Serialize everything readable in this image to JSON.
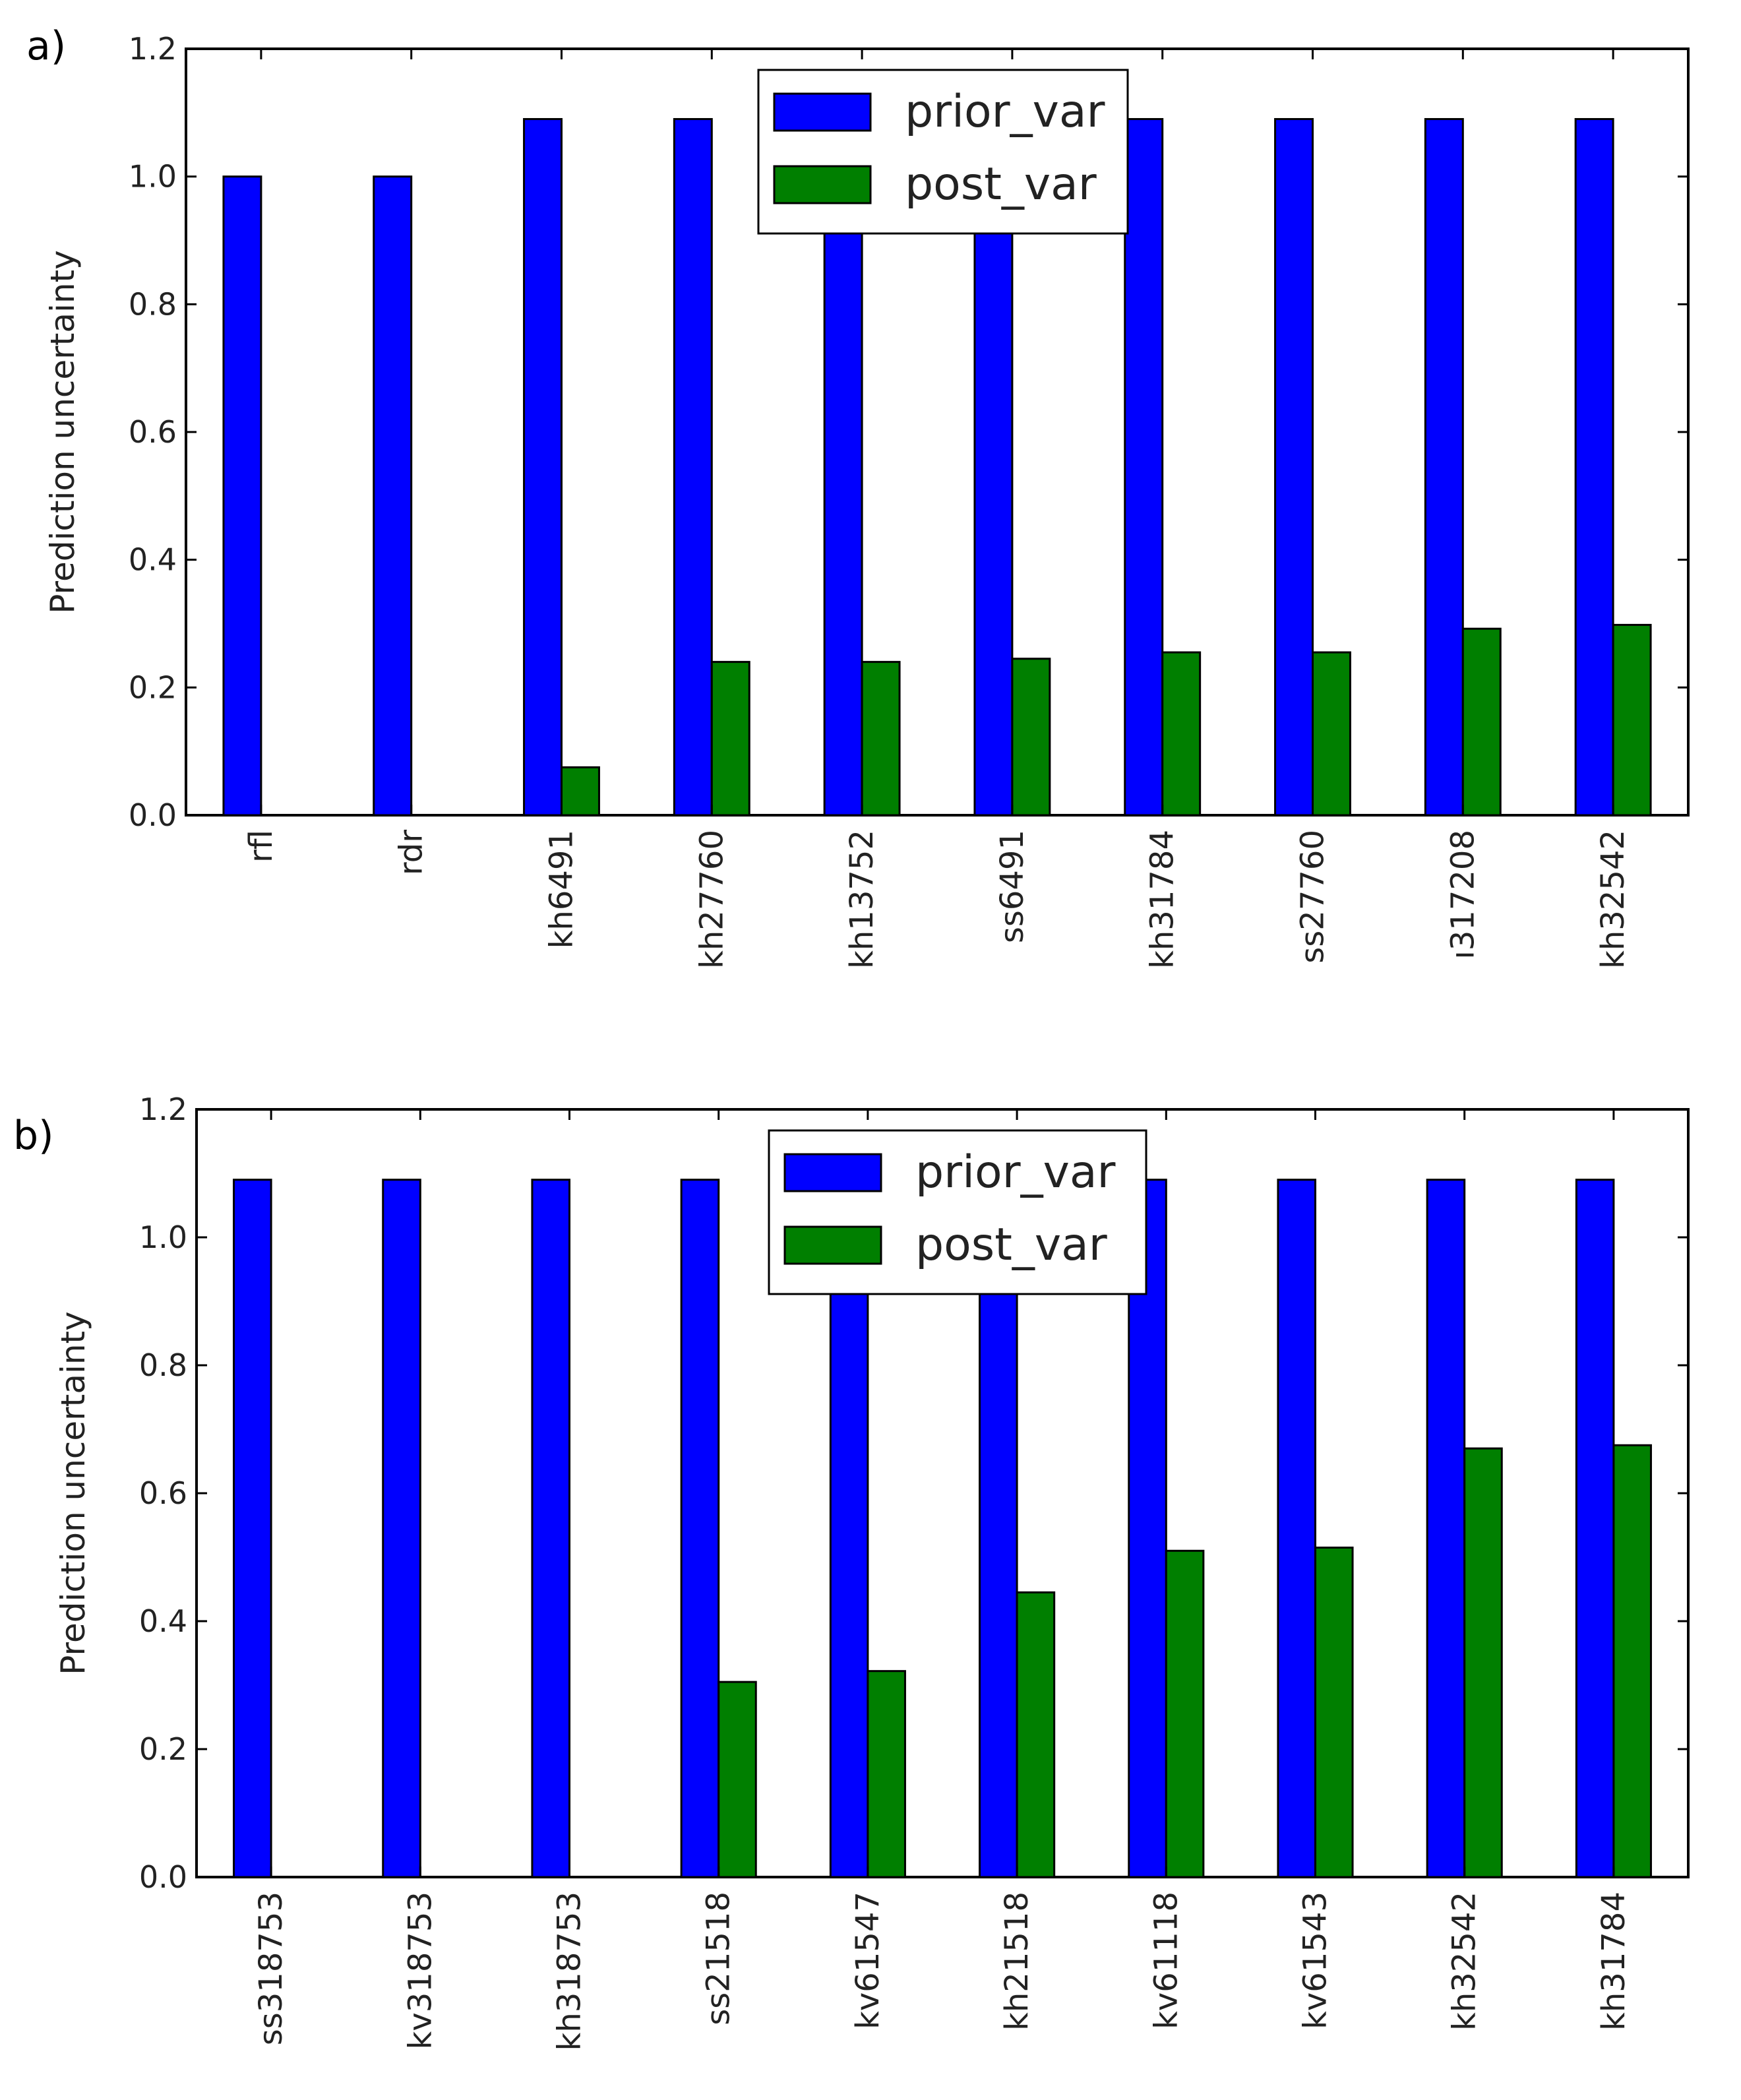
{
  "chart_data": [
    {
      "panel_label": "a)",
      "type": "bar",
      "ylabel": "Prediction uncertainty",
      "ylim": [
        0,
        1.2
      ],
      "yticks": [
        "0.0",
        "0.2",
        "0.4",
        "0.6",
        "0.8",
        "1.0",
        "1.2"
      ],
      "categories": [
        "rfl",
        "rdr",
        "kh6491",
        "kh27760",
        "kh13752",
        "ss6491",
        "kh31784",
        "ss27760",
        "ı317208",
        "kh32542"
      ],
      "series": [
        {
          "name": "prior_var",
          "color": "#0000ff",
          "values": [
            1.0,
            1.0,
            1.09,
            1.09,
            1.09,
            1.09,
            1.09,
            1.09,
            1.09,
            1.09
          ]
        },
        {
          "name": "post_var",
          "color": "#007f00",
          "values": [
            0.0,
            0.0,
            0.075,
            0.24,
            0.24,
            0.245,
            0.255,
            0.255,
            0.292,
            0.298
          ]
        }
      ],
      "legend_position": "upper-center"
    },
    {
      "panel_label": "b)",
      "type": "bar",
      "ylabel": "Prediction uncertainty",
      "ylim": [
        0,
        1.2
      ],
      "yticks": [
        "0.0",
        "0.2",
        "0.4",
        "0.6",
        "0.8",
        "1.0",
        "1.2"
      ],
      "categories": [
        "ss318753",
        "kv318753",
        "kh318753",
        "ss21518",
        "kv61547",
        "kh21518",
        "kv61118",
        "kv61543",
        "kh32542",
        "kh31784"
      ],
      "series": [
        {
          "name": "prior_var",
          "color": "#0000ff",
          "values": [
            1.09,
            1.09,
            1.09,
            1.09,
            1.09,
            1.09,
            1.09,
            1.09,
            1.09,
            1.09
          ]
        },
        {
          "name": "post_var",
          "color": "#007f00",
          "values": [
            0.0,
            0.0,
            0.0,
            0.305,
            0.322,
            0.445,
            0.51,
            0.515,
            0.67,
            0.675
          ]
        }
      ],
      "legend_position": "upper-center"
    }
  ]
}
